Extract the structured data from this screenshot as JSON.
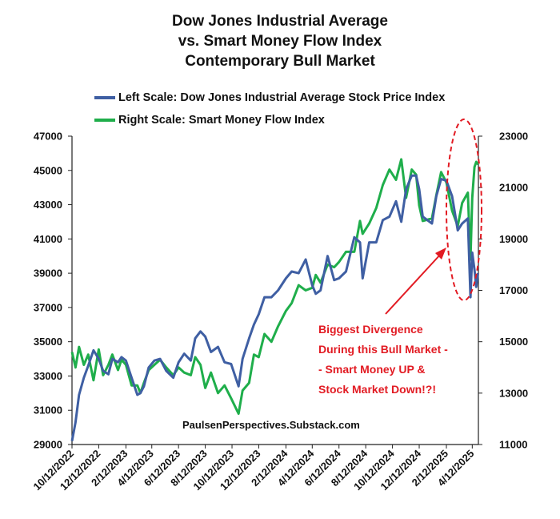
{
  "chart_data": {
    "type": "line",
    "title": [
      "Dow Jones Industrial Average",
      "vs. Smart Money Flow Index",
      "Contemporary Bull Market"
    ],
    "series": [
      {
        "name": "Left Scale: Dow Jones Industrial Average Stock Price Index",
        "axis": "left",
        "color": "#3f5fa3",
        "points": [
          [
            "10/12/2022",
            29200
          ],
          [
            "10/20/2022",
            30300
          ],
          [
            "10/28/2022",
            31900
          ],
          [
            "11/8/2022",
            32900
          ],
          [
            "11/18/2022",
            33600
          ],
          [
            "11/30/2022",
            34500
          ],
          [
            "12/12/2022",
            34000
          ],
          [
            "12/22/2022",
            33300
          ],
          [
            "1/3/2023",
            33100
          ],
          [
            "1/12/2023",
            34000
          ],
          [
            "1/25/2023",
            33800
          ],
          [
            "2/2/2023",
            34100
          ],
          [
            "2/12/2023",
            33900
          ],
          [
            "2/25/2023",
            32900
          ],
          [
            "3/10/2023",
            31900
          ],
          [
            "3/17/2023",
            32000
          ],
          [
            "3/25/2023",
            32400
          ],
          [
            "4/5/2023",
            33500
          ],
          [
            "4/18/2023",
            33900
          ],
          [
            "5/1/2023",
            34000
          ],
          [
            "5/15/2023",
            33300
          ],
          [
            "5/31/2023",
            32900
          ],
          [
            "6/12/2023",
            33800
          ],
          [
            "6/25/2023",
            34300
          ],
          [
            "7/10/2023",
            33900
          ],
          [
            "7/20/2023",
            35200
          ],
          [
            "8/1/2023",
            35600
          ],
          [
            "8/12/2023",
            35300
          ],
          [
            "8/25/2023",
            34400
          ],
          [
            "9/10/2023",
            34700
          ],
          [
            "9/25/2023",
            33800
          ],
          [
            "10/10/2023",
            33700
          ],
          [
            "10/27/2023",
            32400
          ],
          [
            "11/5/2023",
            34000
          ],
          [
            "11/20/2023",
            35200
          ],
          [
            "12/1/2023",
            36000
          ],
          [
            "12/12/2023",
            36600
          ],
          [
            "12/25/2023",
            37600
          ],
          [
            "1/10/2024",
            37600
          ],
          [
            "1/25/2024",
            38000
          ],
          [
            "2/12/2024",
            38700
          ],
          [
            "2/25/2024",
            39100
          ],
          [
            "3/12/2024",
            39000
          ],
          [
            "3/28/2024",
            39800
          ],
          [
            "4/12/2024",
            38300
          ],
          [
            "4/20/2024",
            37800
          ],
          [
            "5/1/2024",
            38000
          ],
          [
            "5/17/2024",
            40000
          ],
          [
            "6/1/2024",
            38600
          ],
          [
            "6/12/2024",
            38700
          ],
          [
            "6/28/2024",
            39100
          ],
          [
            "7/17/2024",
            41100
          ],
          [
            "7/30/2024",
            40800
          ],
          [
            "8/5/2024",
            38700
          ],
          [
            "8/20/2024",
            40800
          ],
          [
            "9/5/2024",
            40800
          ],
          [
            "9/20/2024",
            42100
          ],
          [
            "10/5/2024",
            42300
          ],
          [
            "10/20/2024",
            43200
          ],
          [
            "11/1/2024",
            42000
          ],
          [
            "11/12/2024",
            43900
          ],
          [
            "11/25/2024",
            44700
          ],
          [
            "12/5/2024",
            44700
          ],
          [
            "12/12/2024",
            43900
          ],
          [
            "12/20/2024",
            42300
          ],
          [
            "1/10/2025",
            41900
          ],
          [
            "1/20/2025",
            43500
          ],
          [
            "1/31/2025",
            44500
          ],
          [
            "2/12/2025",
            44400
          ],
          [
            "2/25/2025",
            43500
          ],
          [
            "3/10/2025",
            41500
          ],
          [
            "3/20/2025",
            41900
          ],
          [
            "4/2/2025",
            42200
          ],
          [
            "4/8/2025",
            37600
          ],
          [
            "4/12/2025",
            40200
          ],
          [
            "4/17/2025",
            39200
          ],
          [
            "4/21/2025",
            38200
          ],
          [
            "4/25/2025",
            39000
          ]
        ]
      },
      {
        "name": "Right Scale: Smart Money Flow Index",
        "axis": "right",
        "color": "#1fae4b",
        "points": [
          [
            "10/12/2022",
            14600
          ],
          [
            "10/20/2022",
            14000
          ],
          [
            "10/28/2022",
            14800
          ],
          [
            "11/8/2022",
            14100
          ],
          [
            "11/18/2022",
            14500
          ],
          [
            "11/30/2022",
            13500
          ],
          [
            "12/12/2022",
            14700
          ],
          [
            "12/22/2022",
            13700
          ],
          [
            "1/3/2023",
            14100
          ],
          [
            "1/12/2023",
            14500
          ],
          [
            "1/25/2023",
            13900
          ],
          [
            "2/2/2023",
            14300
          ],
          [
            "2/12/2023",
            14100
          ],
          [
            "2/25/2023",
            13300
          ],
          [
            "3/10/2023",
            13300
          ],
          [
            "3/17/2023",
            13000
          ],
          [
            "3/25/2023",
            13400
          ],
          [
            "4/5/2023",
            13900
          ],
          [
            "4/18/2023",
            14100
          ],
          [
            "5/1/2023",
            14300
          ],
          [
            "5/15/2023",
            14000
          ],
          [
            "5/31/2023",
            13700
          ],
          [
            "6/12/2023",
            14000
          ],
          [
            "6/25/2023",
            13800
          ],
          [
            "7/10/2023",
            13700
          ],
          [
            "7/20/2023",
            14400
          ],
          [
            "8/1/2023",
            14100
          ],
          [
            "8/12/2023",
            13200
          ],
          [
            "8/25/2023",
            13800
          ],
          [
            "9/10/2023",
            13000
          ],
          [
            "9/25/2023",
            13300
          ],
          [
            "10/10/2023",
            12800
          ],
          [
            "10/27/2023",
            12200
          ],
          [
            "11/5/2023",
            13100
          ],
          [
            "11/20/2023",
            13400
          ],
          [
            "12/1/2023",
            14500
          ],
          [
            "12/12/2023",
            14400
          ],
          [
            "12/25/2023",
            15300
          ],
          [
            "1/10/2024",
            15000
          ],
          [
            "1/25/2024",
            15600
          ],
          [
            "2/12/2024",
            16200
          ],
          [
            "2/25/2024",
            16500
          ],
          [
            "3/12/2024",
            17200
          ],
          [
            "3/28/2024",
            17000
          ],
          [
            "4/12/2024",
            17100
          ],
          [
            "4/20/2024",
            17600
          ],
          [
            "5/1/2024",
            17300
          ],
          [
            "5/17/2024",
            18000
          ],
          [
            "6/1/2024",
            17900
          ],
          [
            "6/12/2024",
            18100
          ],
          [
            "6/28/2024",
            18500
          ],
          [
            "7/17/2024",
            18500
          ],
          [
            "7/30/2024",
            19700
          ],
          [
            "8/5/2024",
            19200
          ],
          [
            "8/20/2024",
            19600
          ],
          [
            "9/5/2024",
            20200
          ],
          [
            "9/20/2024",
            21100
          ],
          [
            "10/5/2024",
            21700
          ],
          [
            "10/20/2024",
            21300
          ],
          [
            "11/1/2024",
            22100
          ],
          [
            "11/12/2024",
            20600
          ],
          [
            "11/25/2024",
            21700
          ],
          [
            "12/5/2024",
            21500
          ],
          [
            "12/12/2024",
            20300
          ],
          [
            "12/20/2024",
            19700
          ],
          [
            "1/10/2025",
            19800
          ],
          [
            "1/20/2025",
            20700
          ],
          [
            "1/31/2025",
            21600
          ],
          [
            "2/12/2025",
            21200
          ],
          [
            "2/25/2025",
            20100
          ],
          [
            "3/10/2025",
            19500
          ],
          [
            "3/20/2025",
            20400
          ],
          [
            "4/2/2025",
            20800
          ],
          [
            "4/8/2025",
            18200
          ],
          [
            "4/12/2025",
            20600
          ],
          [
            "4/17/2025",
            21800
          ],
          [
            "4/21/2025",
            22000
          ],
          [
            "4/25/2025",
            21900
          ]
        ]
      }
    ],
    "x_ticks": [
      "10/12/2022",
      "12/12/2022",
      "2/12/2023",
      "4/12/2023",
      "6/12/2023",
      "8/12/2023",
      "10/12/2023",
      "12/12/2023",
      "2/12/2024",
      "4/12/2024",
      "6/12/2024",
      "8/12/2024",
      "10/12/2024",
      "12/12/2024",
      "2/12/2025",
      "4/12/2025"
    ],
    "y_left": {
      "min": 29000,
      "max": 47000,
      "ticks": [
        "29000",
        "31000",
        "33000",
        "35000",
        "37000",
        "39000",
        "41000",
        "43000",
        "45000",
        "47000"
      ]
    },
    "y_right": {
      "min": 11000,
      "max": 23000,
      "ticks": [
        "11000",
        "13000",
        "15000",
        "17000",
        "19000",
        "21000",
        "23000"
      ]
    },
    "annotation": {
      "lines": [
        "Biggest Divergence",
        "During this Bull Market -",
        "- Smart Money UP &",
        "Stock Market Down!?!"
      ],
      "color": "#e21b23"
    },
    "source": "PaulsenPerspectives.Substack.com"
  }
}
